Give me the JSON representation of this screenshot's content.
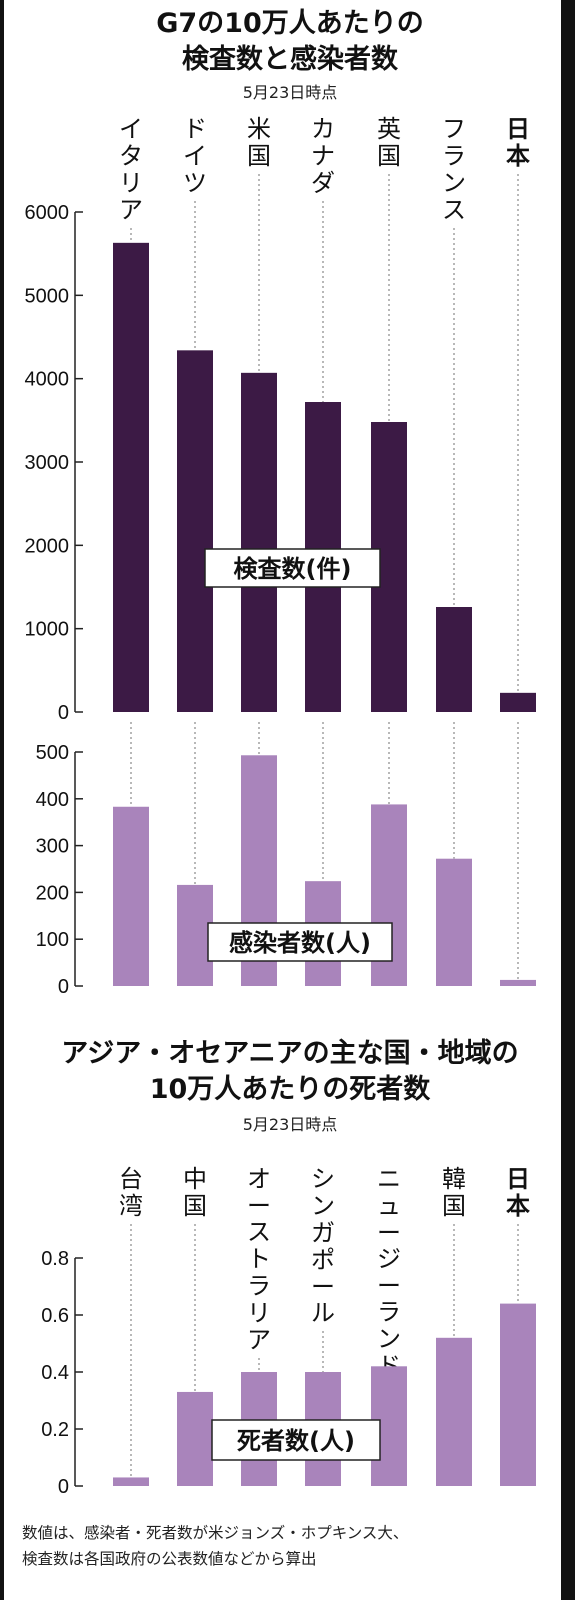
{
  "colors": {
    "dark_bar": "#3c1a45",
    "light_bar": "#a984bb",
    "frame": "#121212",
    "paper": "#ffffff"
  },
  "chart_data": [
    {
      "type": "bar",
      "title": "G7の10万人あたりの\n検査数と感染者数",
      "subtitle": "5月23日時点",
      "categories": [
        "イタリア",
        "ドイツ",
        "米国",
        "カナダ",
        "英国",
        "フランス",
        "日本"
      ],
      "highlight_category": "日本",
      "panels": [
        {
          "label": "検査数(件)",
          "values": [
            5630,
            4340,
            4070,
            3720,
            3480,
            1260,
            230
          ],
          "ylim": [
            0,
            6000
          ],
          "yticks": [
            0,
            1000,
            2000,
            3000,
            4000,
            5000,
            6000
          ],
          "color": "dark"
        },
        {
          "label": "感染者数(人)",
          "values": [
            383,
            216,
            493,
            224,
            388,
            272,
            13
          ],
          "ylim": [
            0,
            500
          ],
          "yticks": [
            0,
            100,
            200,
            300,
            400,
            500
          ],
          "color": "light"
        }
      ]
    },
    {
      "type": "bar",
      "title": "アジア・オセアニアの主な国・地域の\n10万人あたりの死者数",
      "subtitle": "5月23日時点",
      "categories": [
        "台湾",
        "中国",
        "オーストラリア",
        "シンガポール",
        "ニュージーランド",
        "韓国",
        "日本"
      ],
      "highlight_category": "日本",
      "panels": [
        {
          "label": "死者数(人)",
          "values": [
            0.03,
            0.33,
            0.4,
            0.4,
            0.42,
            0.52,
            0.64
          ],
          "ylim": [
            0,
            0.8
          ],
          "yticks": [
            "0",
            "0.2",
            "0.4",
            "0.6",
            "0.8"
          ],
          "color": "light"
        }
      ]
    }
  ],
  "footnote": "数値は、感染者・死者数が米ジョンズ・ホプキンス大、\n検査数は各国政府の公表数値などから算出"
}
